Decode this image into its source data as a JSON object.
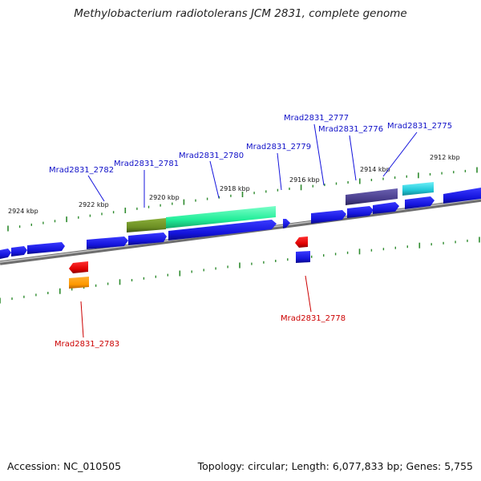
{
  "title": "Methylobacterium radiotolerans JCM 2831, complete genome",
  "footer": {
    "accession": "Accession: NC_010505",
    "summary": "Topology: circular; Length: 6,077,833 bp; Genes: 5,755"
  },
  "colors": {
    "forward_label": "#1010c8",
    "reverse_label": "#cc0000",
    "backbone": "#8a8a8a",
    "tick": "#2e8b2e",
    "gene_blue": "#1a1ae6",
    "gene_red": "#e60000",
    "gene_orange": "#ff9900",
    "gene_olive": "#6b8e23",
    "gene_spring": "#22ee99",
    "gene_slate": "#483d8b",
    "gene_cyan": "#20c8d8"
  },
  "scale_labels": [
    "2924 kbp",
    "2922 kbp",
    "2920 kbp",
    "2918 kbp",
    "2916 kbp",
    "2914 kbp",
    "2912 kbp"
  ],
  "forward_labels": [
    "Mrad2831_2782",
    "Mrad2831_2781",
    "Mrad2831_2780",
    "Mrad2831_2779",
    "Mrad2831_2777",
    "Mrad2831_2776",
    "Mrad2831_2775"
  ],
  "reverse_labels": [
    "Mrad2831_2783",
    "Mrad2831_2778"
  ]
}
